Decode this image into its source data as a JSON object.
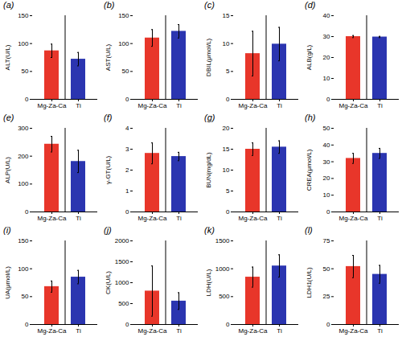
{
  "chart_data": [
    {
      "type": "bar",
      "title": "(a)",
      "ylabel": "ALT(U/L)",
      "categories": [
        "Mg-Za-Ca",
        "Ti"
      ],
      "values": [
        87,
        72
      ],
      "errors": [
        12,
        12
      ],
      "colors": [
        "#E8362A",
        "#2B35B0"
      ],
      "ylim": [
        0,
        150
      ],
      "yticks": [
        0,
        50,
        100,
        150
      ]
    },
    {
      "type": "bar",
      "title": "(b)",
      "ylabel": "AST(U/L)",
      "categories": [
        "Mg-Za-Ca",
        "Ti"
      ],
      "values": [
        110,
        122
      ],
      "errors": [
        15,
        12
      ],
      "colors": [
        "#E8362A",
        "#2B35B0"
      ],
      "ylim": [
        0,
        150
      ],
      "yticks": [
        0,
        50,
        100,
        150
      ]
    },
    {
      "type": "bar",
      "title": "(c)",
      "ylabel": "DBIL(μmol/L)",
      "categories": [
        "Mg-Za-Ca",
        "Ti"
      ],
      "values": [
        8.2,
        9.9
      ],
      "errors": [
        4.0,
        3.0
      ],
      "colors": [
        "#E8362A",
        "#2B35B0"
      ],
      "ylim": [
        0,
        15
      ],
      "yticks": [
        0,
        5,
        10,
        15
      ]
    },
    {
      "type": "bar",
      "title": "(d)",
      "ylabel": "ALB(g/L)",
      "categories": [
        "Mg-Za-Ca",
        "Ti"
      ],
      "values": [
        30.0,
        29.8
      ],
      "errors": [
        0.5,
        0.3
      ],
      "colors": [
        "#E8362A",
        "#2B35B0"
      ],
      "ylim": [
        0,
        40
      ],
      "yticks": [
        0,
        10,
        20,
        30,
        40
      ]
    },
    {
      "type": "bar",
      "title": "(e)",
      "ylabel": "ALP(U/L)",
      "categories": [
        "Mg-Za-Ca",
        "Ti"
      ],
      "values": [
        243,
        181
      ],
      "errors": [
        28,
        40
      ],
      "colors": [
        "#E8362A",
        "#2B35B0"
      ],
      "ylim": [
        0,
        300
      ],
      "yticks": [
        0,
        100,
        200,
        300
      ]
    },
    {
      "type": "bar",
      "title": "(f)",
      "ylabel": "γ-GT(U/L)",
      "categories": [
        "Mg-Za-Ca",
        "Ti"
      ],
      "values": [
        2.8,
        2.65
      ],
      "errors": [
        0.5,
        0.2
      ],
      "colors": [
        "#E8362A",
        "#2B35B0"
      ],
      "ylim": [
        0,
        4
      ],
      "yticks": [
        0,
        1,
        2,
        3,
        4
      ]
    },
    {
      "type": "bar",
      "title": "(g)",
      "ylabel": "BUN(mg/dL)",
      "categories": [
        "Mg-Za-Ca",
        "Ti"
      ],
      "values": [
        15.0,
        15.5
      ],
      "errors": [
        1.5,
        1.5
      ],
      "colors": [
        "#E8362A",
        "#2B35B0"
      ],
      "ylim": [
        0,
        20
      ],
      "yticks": [
        0,
        5,
        10,
        15,
        20
      ]
    },
    {
      "type": "bar",
      "title": "(h)",
      "ylabel": "CREA(μmol/L)",
      "categories": [
        "Mg-Za-Ca",
        "Ti"
      ],
      "values": [
        32,
        35
      ],
      "errors": [
        3,
        3
      ],
      "colors": [
        "#E8362A",
        "#2B35B0"
      ],
      "ylim": [
        0,
        50
      ],
      "yticks": [
        0,
        10,
        20,
        30,
        40,
        50
      ]
    },
    {
      "type": "bar",
      "title": "(i)",
      "ylabel": "UA(μmol/L)",
      "categories": [
        "Mg-Za-Ca",
        "Ti"
      ],
      "values": [
        68,
        85
      ],
      "errors": [
        10,
        12
      ],
      "colors": [
        "#E8362A",
        "#2B35B0"
      ],
      "ylim": [
        0,
        150
      ],
      "yticks": [
        0,
        50,
        100,
        150
      ]
    },
    {
      "type": "bar",
      "title": "(j)",
      "ylabel": "CK(U/L)",
      "categories": [
        "Mg-Za-Ca",
        "Ti"
      ],
      "values": [
        800,
        560
      ],
      "errors": [
        600,
        200
      ],
      "colors": [
        "#E8362A",
        "#2B35B0"
      ],
      "ylim": [
        0,
        2000
      ],
      "yticks": [
        0,
        500,
        1000,
        1500,
        2000
      ]
    },
    {
      "type": "bar",
      "title": "(k)",
      "ylabel": "LDH(U/L)",
      "categories": [
        "Mg-Za-Ca",
        "Ti"
      ],
      "values": [
        850,
        1050
      ],
      "errors": [
        180,
        200
      ],
      "colors": [
        "#E8362A",
        "#2B35B0"
      ],
      "ylim": [
        0,
        1500
      ],
      "yticks": [
        0,
        500,
        1000,
        1500
      ]
    },
    {
      "type": "bar",
      "title": "(l)",
      "ylabel": "LDH1(U/L)",
      "categories": [
        "Mg-Za-Ca",
        "Ti"
      ],
      "values": [
        52,
        45
      ],
      "errors": [
        10,
        8
      ],
      "colors": [
        "#E8362A",
        "#2B35B0"
      ],
      "ylim": [
        0,
        75
      ],
      "yticks": [
        0,
        25,
        50,
        75
      ]
    }
  ]
}
